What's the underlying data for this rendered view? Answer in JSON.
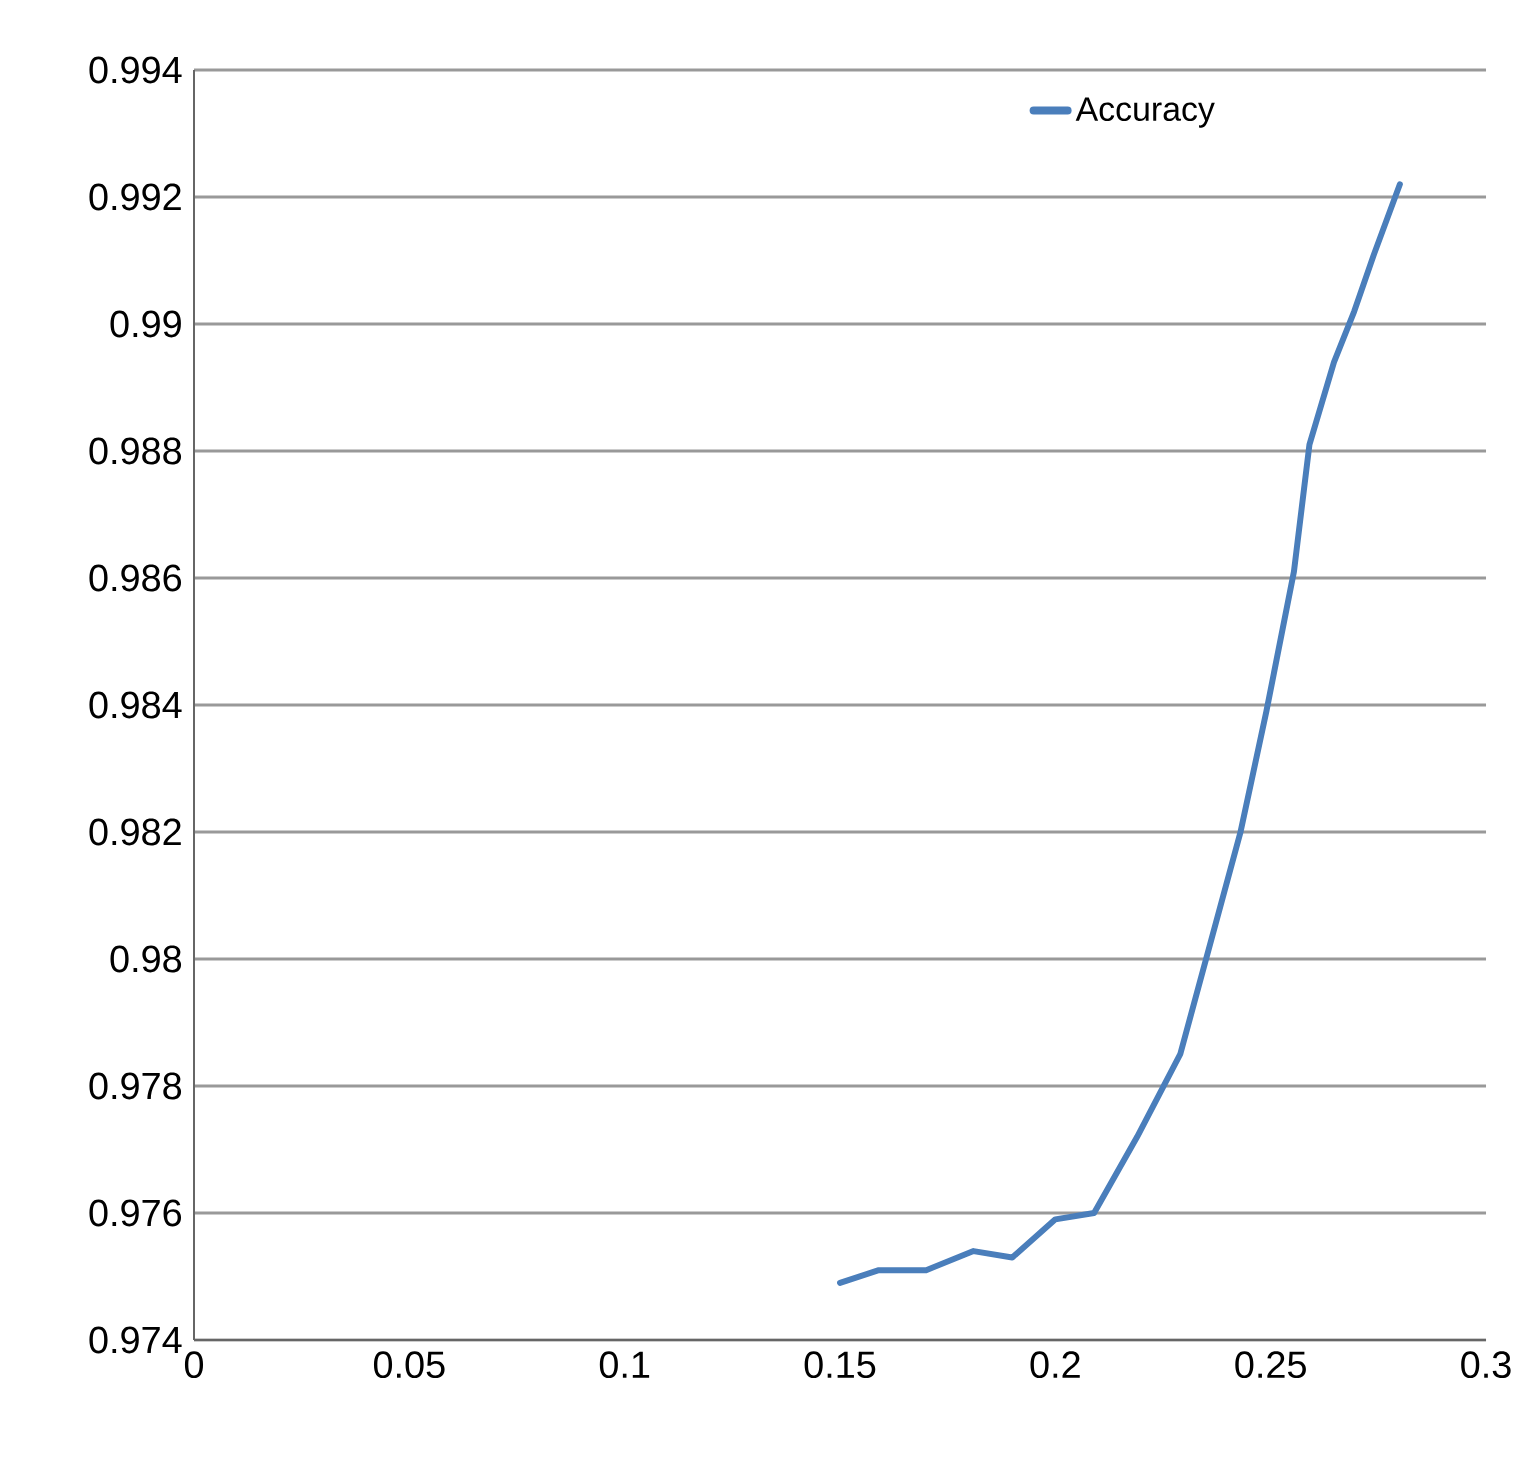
{
  "chart_data": {
    "type": "line",
    "series": [
      {
        "name": "Accuracy",
        "color": "#4a7ebb",
        "x": [
          0.15,
          0.159,
          0.17,
          0.181,
          0.19,
          0.2,
          0.209,
          0.219,
          0.229,
          0.235,
          0.243,
          0.249,
          0.2554,
          0.259,
          0.2647,
          0.2694,
          0.274,
          0.28
        ],
        "values": [
          0.9749,
          0.9751,
          0.9751,
          0.9754,
          0.9753,
          0.9759,
          0.976,
          0.9772,
          0.9785,
          0.98,
          0.982,
          0.9839,
          0.9861,
          0.9881,
          0.9894,
          0.9902,
          0.9911,
          0.9922
        ]
      }
    ],
    "xlim": [
      0,
      0.3
    ],
    "xticks": [
      0,
      0.05,
      0.1,
      0.15,
      0.2,
      0.25,
      0.3
    ],
    "ylim": [
      0.974,
      0.994
    ],
    "yticks": [
      0.974,
      0.976,
      0.978,
      0.98,
      0.982,
      0.984,
      0.986,
      0.988,
      0.99,
      0.992,
      0.994
    ],
    "grid": "y",
    "legend": "top",
    "marker": "none",
    "line_style": "solid"
  }
}
